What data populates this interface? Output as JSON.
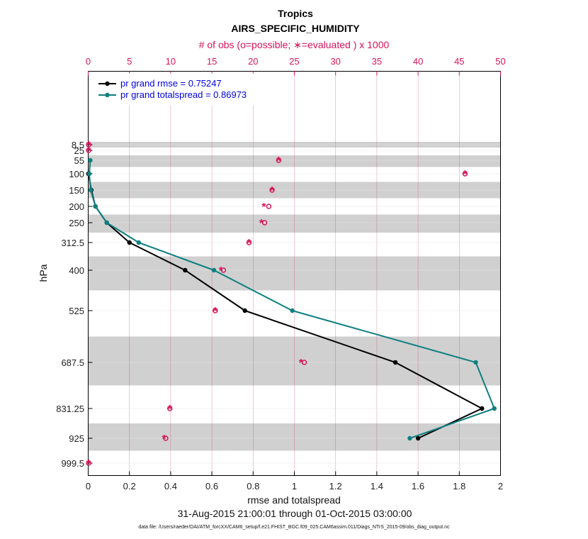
{
  "chart_data": {
    "type": "line",
    "title": "Tropics",
    "subtitle": "AIRS_SPECIFIC_HUMIDITY",
    "top_axis_label": "# of obs (o=possible; ∗=evaluated ) x 1000",
    "xlabel": "rmse and totalspread",
    "ylabel": "hPa",
    "date_range": "31-Aug-2015 21:00:01 through 01-Oct-2015 03:00:00",
    "footnote": "data file: /Users/raeder/DAI/ATM_forcXX/CAM6_setup/f.e21.FHIST_BGC.f09_025.CAM6assim.011/Diags_NTrS_2015-09/obs_diag_output.nc",
    "xlim": [
      0,
      2
    ],
    "x_ticks": [
      "0",
      "0.2",
      "0.4",
      "0.6",
      "0.8",
      "1",
      "1.2",
      "1.4",
      "1.6",
      "1.8",
      "2"
    ],
    "top_xlim": [
      0,
      50
    ],
    "top_ticks": [
      "0",
      "5",
      "10",
      "15",
      "20",
      "25",
      "30",
      "35",
      "40",
      "45",
      "50"
    ],
    "y_levels": [
      8.5,
      25,
      55,
      100,
      150,
      200,
      250,
      312.5,
      400,
      525,
      687.5,
      831.25,
      925,
      999.5
    ],
    "y_tick_labels": [
      "8.5",
      "25",
      "55",
      "100",
      "150",
      "200",
      "250",
      "312.5",
      "400",
      "525",
      "687.5",
      "831.25",
      "925",
      "999.5"
    ],
    "series": [
      {
        "name": "rmse",
        "legend": "pr grand rmse = 0.75247",
        "color": "#000000",
        "levels": [
          100,
          150,
          200,
          250,
          312.5,
          400,
          525,
          687.5,
          831.25,
          925
        ],
        "values": [
          0.001,
          0.015,
          0.035,
          0.09,
          0.2,
          0.47,
          0.76,
          1.49,
          1.91,
          1.6
        ]
      },
      {
        "name": "totalspread",
        "legend": "pr grand totalspread = 0.86973",
        "color": "#0f8080",
        "levels": [
          55,
          100,
          150,
          200,
          250,
          312.5,
          400,
          525,
          687.5,
          831.25,
          925
        ],
        "values": [
          0.01,
          0.005,
          0.012,
          0.035,
          0.09,
          0.245,
          0.61,
          0.99,
          1.88,
          1.97,
          1.56
        ]
      }
    ],
    "obs_counts_x1000": {
      "color": "#d6135a",
      "possible": {
        "levels": [
          8.5,
          25,
          55,
          100,
          150,
          200,
          250,
          312.5,
          400,
          525,
          687.5,
          831.25,
          925,
          999.5
        ],
        "values": [
          0.05,
          0.05,
          23.1,
          45.7,
          22.3,
          21.9,
          21.4,
          19.5,
          16.4,
          15.4,
          26.2,
          9.9,
          9.4,
          0.05
        ]
      },
      "evaluated": {
        "levels": [
          8.5,
          25,
          55,
          100,
          150,
          200,
          250,
          312.5,
          400,
          525,
          687.5,
          831.25,
          925,
          999.5
        ],
        "values": [
          0.05,
          0.05,
          23.1,
          45.7,
          22.3,
          21.3,
          21.0,
          19.5,
          16.1,
          15.4,
          25.8,
          9.9,
          9.2,
          0.05
        ]
      }
    }
  },
  "colors": {
    "obs": "#d6135a",
    "rmse": "#000000",
    "spread": "#0f8080",
    "band": "#d0d0d0",
    "legend_text": "#0000dd"
  }
}
